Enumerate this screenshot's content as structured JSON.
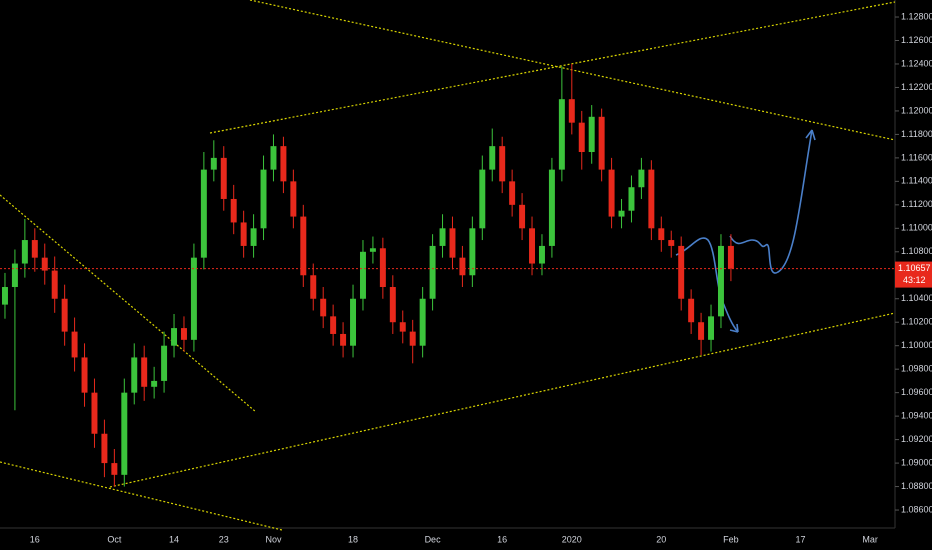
{
  "chart_data": {
    "type": "candlestick",
    "categories": [
      null,
      null,
      null,
      "16",
      null,
      null,
      null,
      null,
      null,
      null,
      null,
      "Oct",
      null,
      null,
      null,
      null,
      null,
      "14",
      null,
      null,
      null,
      null,
      "23",
      null,
      null,
      null,
      null,
      "Nov",
      null,
      null,
      null,
      null,
      null,
      null,
      null,
      "18",
      null,
      null,
      null,
      null,
      null,
      null,
      null,
      "Dec",
      null,
      null,
      null,
      null,
      null,
      null,
      "16",
      null,
      null,
      null,
      null,
      null,
      null,
      "2020",
      null,
      null,
      null,
      null,
      null,
      null,
      null,
      null,
      "20",
      null,
      null,
      null,
      null,
      null,
      null,
      "Feb",
      null,
      null,
      null,
      null,
      null,
      null,
      "17",
      null,
      null,
      null,
      null,
      null,
      null,
      "Mar",
      null,
      null
    ],
    "open": [
      1.1035,
      1.105,
      1.107,
      1.109,
      1.1075,
      1.1064,
      1.104,
      1.1012,
      1.099,
      1.096,
      1.0925,
      1.09,
      1.089,
      1.096,
      1.099,
      1.0965,
      1.097,
      1.1,
      1.1015,
      1.1005,
      1.1075,
      1.115,
      1.116,
      1.1125,
      1.1105,
      1.1085,
      1.11,
      1.115,
      1.117,
      1.114,
      1.111,
      1.106,
      1.104,
      1.1025,
      1.101,
      1.1,
      1.104,
      1.108,
      1.1083,
      1.105,
      1.102,
      1.1012,
      1.1,
      1.104,
      1.1085,
      1.11,
      1.1075,
      1.106,
      1.11,
      1.115,
      1.117,
      1.114,
      1.112,
      1.11,
      1.107,
      1.1085,
      1.115,
      1.121,
      1.119,
      1.1165,
      1.1195,
      1.115,
      1.111,
      1.1115,
      1.1135,
      1.115,
      1.11,
      1.109,
      1.1085,
      1.104,
      1.102,
      1.1005,
      1.1025,
      1.1085,
      null,
      null,
      null,
      null,
      null,
      null,
      null,
      null,
      null,
      null,
      null,
      null,
      null,
      null,
      null,
      null
    ],
    "high": [
      1.1062,
      1.1082,
      1.1108,
      1.11,
      1.1087,
      1.1076,
      1.1052,
      1.1024,
      1.1002,
      1.0972,
      1.0937,
      1.0912,
      1.0972,
      1.1002,
      1.1,
      1.0982,
      1.1012,
      1.1027,
      1.1025,
      1.1087,
      1.1165,
      1.1175,
      1.117,
      1.1137,
      1.1115,
      1.1112,
      1.1162,
      1.118,
      1.1178,
      1.115,
      1.112,
      1.107,
      1.105,
      1.1035,
      1.102,
      1.1052,
      1.109,
      1.1093,
      1.1092,
      1.106,
      1.103,
      1.1022,
      1.105,
      1.1095,
      1.1112,
      1.111,
      1.1085,
      1.111,
      1.1162,
      1.1185,
      1.1178,
      1.115,
      1.113,
      1.111,
      1.1095,
      1.116,
      1.1238,
      1.124,
      1.12,
      1.1205,
      1.1202,
      1.116,
      1.1125,
      1.1145,
      1.116,
      1.1158,
      1.111,
      1.1098,
      1.1093,
      1.1048,
      1.1028,
      1.1035,
      1.1095,
      1.1095,
      null,
      null,
      null,
      null,
      null,
      null,
      null,
      null,
      null,
      null,
      null,
      null,
      null,
      null,
      null,
      null
    ],
    "low": [
      1.1023,
      1.0945,
      1.1058,
      1.1063,
      1.1052,
      1.1028,
      1.1,
      1.0978,
      1.0948,
      1.0913,
      1.0888,
      1.088,
      1.088,
      1.095,
      1.0953,
      1.0955,
      1.096,
      1.099,
      1.0995,
      1.0995,
      1.1065,
      1.114,
      1.1115,
      1.1095,
      1.1075,
      1.1075,
      1.109,
      1.114,
      1.113,
      1.11,
      1.105,
      1.103,
      1.1015,
      1.1,
      1.099,
      1.099,
      1.103,
      1.107,
      1.104,
      1.101,
      1.1002,
      1.0985,
      1.099,
      1.103,
      1.1075,
      1.1065,
      1.105,
      1.105,
      1.109,
      1.114,
      1.113,
      1.111,
      1.109,
      1.106,
      1.106,
      1.1075,
      1.114,
      1.118,
      1.115,
      1.1155,
      1.114,
      1.11,
      1.11,
      1.1105,
      1.1125,
      1.109,
      1.108,
      1.1075,
      1.103,
      1.101,
      1.0992,
      1.0995,
      1.1015,
      1.1055,
      null,
      null,
      null,
      null,
      null,
      null,
      null,
      null,
      null,
      null,
      null,
      null,
      null,
      null,
      null,
      null
    ],
    "close": [
      1.105,
      1.107,
      1.109,
      1.1075,
      1.1064,
      1.104,
      1.1012,
      1.099,
      1.096,
      1.0925,
      1.09,
      1.089,
      1.096,
      1.099,
      1.0965,
      1.097,
      1.1,
      1.1015,
      1.1005,
      1.1075,
      1.115,
      1.116,
      1.1125,
      1.1105,
      1.1085,
      1.11,
      1.115,
      1.117,
      1.114,
      1.111,
      1.106,
      1.104,
      1.1025,
      1.101,
      1.1,
      1.104,
      1.108,
      1.1083,
      1.105,
      1.102,
      1.1012,
      1.1,
      1.104,
      1.1085,
      1.11,
      1.1075,
      1.106,
      1.11,
      1.115,
      1.117,
      1.114,
      1.112,
      1.11,
      1.107,
      1.1085,
      1.115,
      1.121,
      1.119,
      1.1165,
      1.1195,
      1.115,
      1.111,
      1.1115,
      1.1135,
      1.115,
      1.11,
      1.109,
      1.1085,
      1.104,
      1.102,
      1.1005,
      1.1025,
      1.1085,
      1.10657,
      null,
      null,
      null,
      null,
      null,
      null,
      null,
      null,
      null,
      null,
      null,
      null,
      null,
      null,
      null,
      null
    ],
    "up_color": "#3cc43c",
    "down_color": "#e8291c",
    "ylim": [
      1.08447,
      1.12945
    ],
    "yticks": [
      {
        "value": 1.128,
        "label": "1.12800"
      },
      {
        "value": 1.126,
        "label": "1.12600"
      },
      {
        "value": 1.124,
        "label": "1.12400"
      },
      {
        "value": 1.122,
        "label": "1.12200"
      },
      {
        "value": 1.12,
        "label": "1.12000"
      },
      {
        "value": 1.118,
        "label": "1.11800"
      },
      {
        "value": 1.116,
        "label": "1.11600"
      },
      {
        "value": 1.114,
        "label": "1.11400"
      },
      {
        "value": 1.112,
        "label": "1.11200"
      },
      {
        "value": 1.11,
        "label": "1.11000"
      },
      {
        "value": 1.108,
        "label": "1.10800"
      },
      {
        "value": 1.104,
        "label": "1.10400"
      },
      {
        "value": 1.102,
        "label": "1.10200"
      },
      {
        "value": 1.1,
        "label": "1.10000"
      },
      {
        "value": 1.098,
        "label": "1.09800"
      },
      {
        "value": 1.096,
        "label": "1.09600"
      },
      {
        "value": 1.094,
        "label": "1.09400"
      },
      {
        "value": 1.092,
        "label": "1.09200"
      },
      {
        "value": 1.09,
        "label": "1.09000"
      },
      {
        "value": 1.088,
        "label": "1.08800"
      },
      {
        "value": 1.086,
        "label": "1.08600"
      }
    ],
    "last_price": 1.10657,
    "countdown": "43:12",
    "price_line_color": "#e8291c"
  }
}
